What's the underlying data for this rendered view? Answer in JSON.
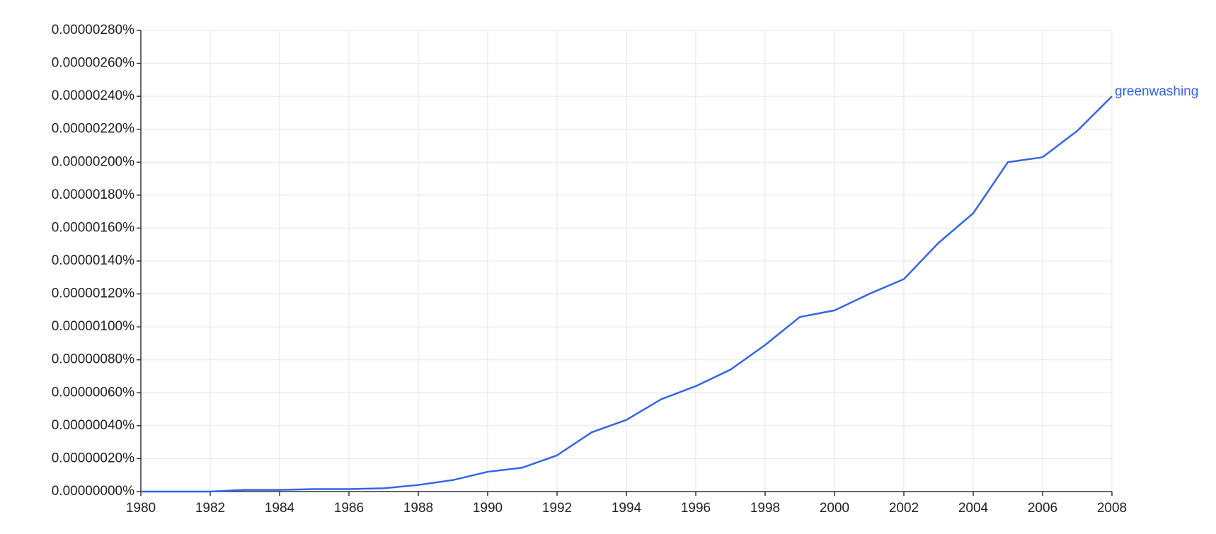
{
  "chart_data": {
    "type": "line",
    "x": [
      1980,
      1981,
      1982,
      1983,
      1984,
      1985,
      1986,
      1987,
      1988,
      1989,
      1990,
      1991,
      1992,
      1993,
      1994,
      1995,
      1996,
      1997,
      1998,
      1999,
      2000,
      2001,
      2002,
      2003,
      2004,
      2005,
      2006,
      2007,
      2008
    ],
    "series": [
      {
        "name": "greenwashing",
        "color": "#3366e6",
        "values": [
          0,
          0,
          0,
          1e-08,
          1e-08,
          1.5e-08,
          1.5e-08,
          2e-08,
          4e-08,
          7e-08,
          1.2e-07,
          1.45e-07,
          2.2e-07,
          3.6e-07,
          4.35e-07,
          5.6e-07,
          6.4e-07,
          7.4e-07,
          8.9e-07,
          1.06e-06,
          1.1e-06,
          1.2e-06,
          1.29e-06,
          1.51e-06,
          1.69e-06,
          2e-06,
          2.03e-06,
          2.19e-06,
          2.4e-06
        ]
      }
    ],
    "xlim": [
      1980,
      2008
    ],
    "xticks": [
      1980,
      1982,
      1984,
      1986,
      1988,
      1990,
      1992,
      1994,
      1996,
      1998,
      2000,
      2002,
      2004,
      2006,
      2008
    ],
    "ylim": [
      0,
      2.8e-06
    ],
    "yticks": [
      {
        "value": 0,
        "label": "0.00000000%"
      },
      {
        "value": 2e-07,
        "label": "0.00000020%"
      },
      {
        "value": 4e-07,
        "label": "0.00000040%"
      },
      {
        "value": 6e-07,
        "label": "0.00000060%"
      },
      {
        "value": 8e-07,
        "label": "0.00000080%"
      },
      {
        "value": 1e-06,
        "label": "0.00000100%"
      },
      {
        "value": 1.2e-06,
        "label": "0.00000120%"
      },
      {
        "value": 1.4e-06,
        "label": "0.00000140%"
      },
      {
        "value": 1.6e-06,
        "label": "0.00000160%"
      },
      {
        "value": 1.8e-06,
        "label": "0.00000180%"
      },
      {
        "value": 2e-06,
        "label": "0.00000200%"
      },
      {
        "value": 2.2e-06,
        "label": "0.00000220%"
      },
      {
        "value": 2.4e-06,
        "label": "0.00000240%"
      },
      {
        "value": 2.6e-06,
        "label": "0.00000260%"
      },
      {
        "value": 2.8e-06,
        "label": "0.00000280%"
      }
    ],
    "grid": true
  }
}
